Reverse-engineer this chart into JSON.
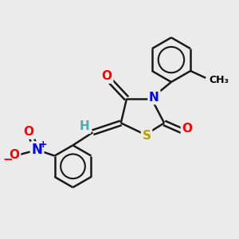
{
  "bg_color": "#ebebeb",
  "atom_colors": {
    "C": "#000000",
    "N": "#0000ff",
    "O": "#ff0000",
    "S": "#b8a000",
    "H": "#4aadad"
  },
  "bond_color": "#1a1a1a",
  "bond_width": 1.8,
  "font_size_atom": 11,
  "font_size_small": 9
}
